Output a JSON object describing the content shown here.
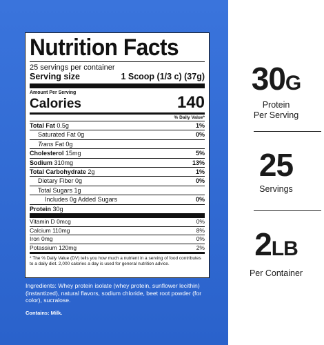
{
  "label": {
    "title": "Nutrition Facts",
    "servings": "25 servings per container",
    "serving_size_label": "Serving size",
    "serving_size_value": "1 Scoop (1/3 c) (37g)",
    "amount_per_serving": "Amount Per Serving",
    "calories_label": "Calories",
    "calories_value": "140",
    "dv_header": "% Daily Value*",
    "nutrients": [
      {
        "name": "Total Fat",
        "amount": "0.5g",
        "dv": "1%"
      },
      {
        "name": "Saturated Fat",
        "amount": "0g",
        "dv": "0%"
      },
      {
        "name": "Trans",
        "amount": "Fat 0g",
        "dv": ""
      },
      {
        "name": "Cholesterol",
        "amount": "15mg",
        "dv": "5%"
      },
      {
        "name": "Sodium",
        "amount": "310mg",
        "dv": "13%"
      },
      {
        "name": "Total Carbohydrate",
        "amount": "2g",
        "dv": "1%"
      },
      {
        "name": "Dietary Fiber",
        "amount": "0g",
        "dv": "0%"
      },
      {
        "name": "Total Sugars",
        "amount": "1g",
        "dv": ""
      },
      {
        "name": "Includes 0g Added Sugars",
        "amount": "",
        "dv": "0%"
      },
      {
        "name": "Protein",
        "amount": "30g",
        "dv": ""
      }
    ],
    "vitamins": [
      {
        "name": "Vitamin D",
        "amount": "0mcg",
        "dv": "0%"
      },
      {
        "name": "Calcium",
        "amount": "110mg",
        "dv": "8%"
      },
      {
        "name": "Iron",
        "amount": "0mg",
        "dv": "0%"
      },
      {
        "name": "Potassium",
        "amount": "120mg",
        "dv": "2%"
      }
    ],
    "footnote": "* The % Daily Value (DV) tells you how much a nutrient in a serving of food contributes to a daily diet. 2,000 calories a day is used for general nutrition advice."
  },
  "ingredients": "Ingredients: Whey protein isolate (whey protein, sunflower lecithin)(instantized), natural flavors, sodium chloride, beet root powder (for color), sucralose.",
  "contains": "Contains: Milk.",
  "stats": {
    "protein_value": "30",
    "protein_unit": "G",
    "protein_label_1": "Protein",
    "protein_label_2": "Per Serving",
    "servings_value": "25",
    "servings_label": "Servings",
    "weight_value": "2",
    "weight_unit": "LB",
    "weight_label": "Per Container"
  },
  "colors": {
    "panel_blue": "#2e6bd6",
    "text_dark": "#1a1a1a"
  }
}
